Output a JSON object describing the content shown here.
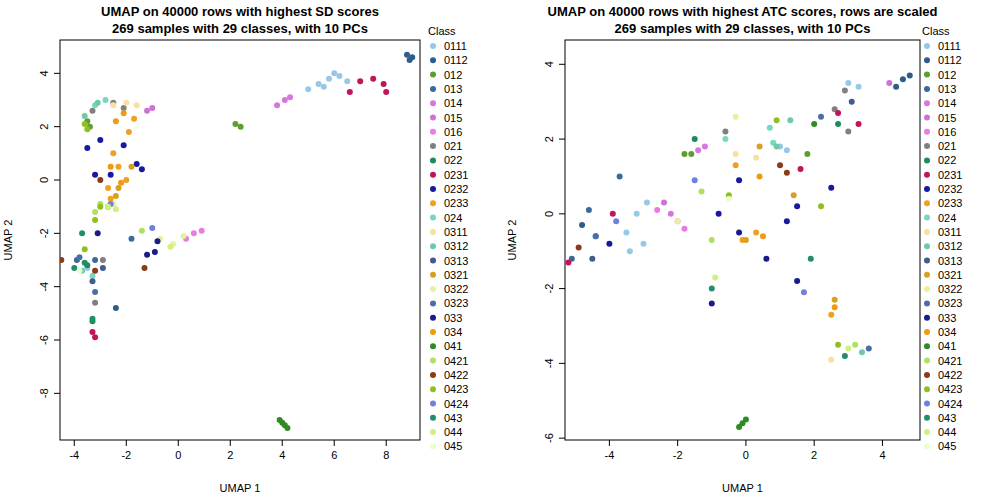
{
  "chart_data": [
    {
      "type": "scatter",
      "title": "UMAP on 40000 rows with highest SD scores",
      "subtitle": "269 samples with 29 classes, with 10 PCs",
      "x_label": "UMAP 1",
      "y_label": "UMAP 2",
      "legend_title": "Class",
      "legend": "right",
      "marker": "circle",
      "xlim": [
        -4.55,
        9.3
      ],
      "ylim": [
        -9.75,
        5.25
      ],
      "xticks": [
        -4,
        -2,
        0,
        2,
        4,
        6,
        8
      ],
      "yticks": [
        -8,
        -6,
        -4,
        -2,
        0,
        2,
        4
      ],
      "series": [
        {
          "name": "0111",
          "color": "#97c8e8",
          "x": [
            5.0,
            5.4,
            5.8,
            6.2,
            6.5,
            5.6,
            6.0,
            -3.5
          ],
          "values": [
            3.4,
            3.6,
            3.8,
            3.9,
            3.7,
            3.5,
            4.0,
            -3.3
          ]
        },
        {
          "name": "0112",
          "color": "#2d5d8a",
          "x": [
            8.8,
            9.0,
            8.9,
            -2.4
          ],
          "values": [
            4.7,
            4.6,
            4.5,
            -4.8
          ]
        },
        {
          "name": "012",
          "color": "#5ba02e",
          "x": [
            2.2,
            2.4,
            -3.5,
            -3.4
          ],
          "values": [
            2.1,
            2.0,
            2.2,
            2.0
          ]
        },
        {
          "name": "013",
          "color": "#3b6a9a",
          "x": [
            -3.9,
            -3.2,
            -1.8
          ],
          "values": [
            -3.0,
            -3.0,
            -2.2
          ]
        },
        {
          "name": "014",
          "color": "#d876e0",
          "x": [
            3.8,
            4.1,
            4.3
          ],
          "values": [
            2.8,
            3.0,
            3.1
          ]
        },
        {
          "name": "015",
          "color": "#d070d8",
          "x": [
            -1.0,
            -1.2
          ],
          "values": [
            2.7,
            2.6
          ]
        },
        {
          "name": "016",
          "color": "#ea7be2",
          "x": [
            0.6,
            0.9,
            0.3
          ],
          "values": [
            -2.0,
            -1.9,
            -2.2
          ]
        },
        {
          "name": "021",
          "color": "#808080",
          "x": [
            -2.9,
            -3.2,
            -2.5,
            -2.1,
            -3.3
          ],
          "values": [
            -3.0,
            -4.6,
            2.9,
            2.7,
            2.6
          ]
        },
        {
          "name": "022",
          "color": "#1e8c5a",
          "x": [
            -3.3,
            -3.5
          ],
          "values": [
            -5.3,
            -3.2
          ]
        },
        {
          "name": "0231",
          "color": "#c0155a",
          "x": [
            6.6,
            7.0,
            7.5,
            7.9,
            8.0,
            -3.3,
            -3.2
          ],
          "values": [
            3.3,
            3.7,
            3.8,
            3.6,
            3.3,
            -5.7,
            -5.9
          ]
        },
        {
          "name": "0232",
          "color": "#1818a0",
          "x": [
            -3.5,
            -3.0,
            -2.1,
            -1.6,
            -1.4,
            -2.6,
            -3.2
          ],
          "values": [
            1.2,
            1.5,
            1.3,
            0.6,
            0.4,
            0.2,
            0.2
          ]
        },
        {
          "name": "0233",
          "color": "#f0a020",
          "x": [
            -2.5,
            -2.3,
            -2.0,
            -1.9,
            -1.7,
            -2.7,
            -2.6
          ],
          "values": [
            1.0,
            0.5,
            0.0,
            1.8,
            2.3,
            -0.3,
            -0.7
          ]
        },
        {
          "name": "024",
          "color": "#76d8c0",
          "x": [
            -3.2,
            -2.8,
            -3.3
          ],
          "values": [
            2.8,
            3.0,
            -3.6
          ]
        },
        {
          "name": "0311",
          "color": "#f8e0a0",
          "x": [
            -2.5,
            -2.0,
            -1.6
          ],
          "values": [
            2.8,
            2.9,
            2.8
          ]
        },
        {
          "name": "0312",
          "color": "#70c8a8",
          "x": [
            -3.6,
            -3.1,
            -3.7
          ],
          "values": [
            2.4,
            2.9,
            -3.4
          ]
        },
        {
          "name": "0313",
          "color": "#3e5c8e",
          "x": [
            -2.9,
            -3.3
          ],
          "values": [
            -3.3,
            -3.8
          ]
        },
        {
          "name": "0321",
          "color": "#d8a020",
          "x": [
            -2.3,
            -2.4,
            -1.8
          ],
          "values": [
            -0.3,
            -0.6,
            0.5
          ]
        },
        {
          "name": "0322",
          "color": "#e8f0a0",
          "x": [
            -2.5,
            -0.7,
            -0.2,
            0.2
          ],
          "values": [
            -0.9,
            -2.2,
            -2.4,
            -2.1
          ]
        },
        {
          "name": "0323",
          "color": "#4a6fa8",
          "x": [
            -3.2,
            -3.8
          ],
          "values": [
            -4.2,
            -2.9
          ]
        },
        {
          "name": "033",
          "color": "#1a1a8c",
          "x": [
            -3.1,
            -0.9,
            -0.8,
            -1.2
          ],
          "values": [
            -2.0,
            -2.7,
            -2.3,
            -2.8
          ]
        },
        {
          "name": "034",
          "color": "#f09a10",
          "x": [
            -2.4,
            -2.1,
            -2.6,
            -2.2
          ],
          "values": [
            2.2,
            2.5,
            0.5,
            -0.1
          ]
        },
        {
          "name": "041",
          "color": "#2e8b22",
          "x": [
            4.0,
            4.1,
            4.2,
            3.9
          ],
          "values": [
            -9.1,
            -9.2,
            -9.3,
            -9.0
          ]
        },
        {
          "name": "0421",
          "color": "#b0e060",
          "x": [
            -3.2,
            -3.0,
            -1.4
          ],
          "values": [
            -1.2,
            -0.9,
            -1.9
          ]
        },
        {
          "name": "0422",
          "color": "#8b3a1a",
          "x": [
            -4.5,
            -3.2,
            -1.3,
            -3.0
          ],
          "values": [
            -3.0,
            -3.4,
            -3.3,
            0.0
          ]
        },
        {
          "name": "0423",
          "color": "#90c020",
          "x": [
            -3.0,
            -3.2,
            -3.6,
            -3.5,
            -3.6
          ],
          "values": [
            -1.0,
            -1.5,
            -2.6,
            1.9,
            2.1
          ]
        },
        {
          "name": "0424",
          "color": "#7080e0",
          "x": [
            -2.6,
            -2.7,
            -1.0
          ],
          "values": [
            -0.9,
            -1.0,
            -1.8
          ]
        },
        {
          "name": "043",
          "color": "#1e8e6e",
          "x": [
            -3.3,
            -3.6,
            -3.7,
            -4.0
          ],
          "values": [
            -5.2,
            -3.1,
            -2.0,
            -3.3
          ]
        },
        {
          "name": "044",
          "color": "#d0f080",
          "x": [
            -2.7,
            -2.4,
            -0.3
          ],
          "values": [
            -1.0,
            -1.1,
            -2.5
          ]
        },
        {
          "name": "045",
          "color": "#e8ffd0",
          "x": [
            -3.8
          ],
          "values": [
            -3.4
          ]
        }
      ]
    },
    {
      "type": "scatter",
      "title": "UMAP on 40000 rows with highest ATC scores, rows are scaled",
      "subtitle": "269 samples with 29 classes, with 10 PCs",
      "x_label": "UMAP 1",
      "y_label": "UMAP 2",
      "legend_title": "Class",
      "legend": "right",
      "marker": "circle",
      "xlim": [
        -5.3,
        5.1
      ],
      "ylim": [
        -6.05,
        4.65
      ],
      "xticks": [
        -4,
        -2,
        0,
        2,
        4
      ],
      "yticks": [
        -6,
        -4,
        -2,
        0,
        2,
        4
      ],
      "series": [
        {
          "name": "0111",
          "color": "#97c8e8",
          "x": [
            -3.5,
            -3.2,
            -2.9,
            -3.4,
            -3.0,
            1.0,
            1.2,
            3.0,
            3.3
          ],
          "values": [
            -0.5,
            0.0,
            0.3,
            -1.0,
            -0.8,
            1.8,
            1.7,
            3.5,
            3.4
          ]
        },
        {
          "name": "0112",
          "color": "#2d5d8a",
          "x": [
            4.6,
            4.8,
            4.4,
            -4.8
          ],
          "values": [
            3.6,
            3.7,
            3.4,
            -0.3
          ]
        },
        {
          "name": "012",
          "color": "#5ba02e",
          "x": [
            -1.8,
            -1.6,
            1.8
          ],
          "values": [
            1.6,
            1.6,
            1.6
          ]
        },
        {
          "name": "013",
          "color": "#3b6a9a",
          "x": [
            -4.6,
            -4.4,
            -5.1,
            -3.7
          ],
          "values": [
            0.1,
            -0.6,
            -1.2,
            1.0
          ]
        },
        {
          "name": "014",
          "color": "#d876e0",
          "x": [
            -1.4,
            -1.2,
            -2.2
          ],
          "values": [
            1.7,
            1.8,
            0.0
          ]
        },
        {
          "name": "015",
          "color": "#d070d8",
          "x": [
            -2.4,
            4.2
          ],
          "values": [
            0.3,
            3.5
          ]
        },
        {
          "name": "016",
          "color": "#ea7be2",
          "x": [
            -2.0,
            -1.8,
            -2.6
          ],
          "values": [
            -0.2,
            -0.4,
            0.1
          ]
        },
        {
          "name": "021",
          "color": "#808080",
          "x": [
            2.9,
            2.6,
            -0.6,
            3.0
          ],
          "values": [
            3.3,
            2.8,
            2.2,
            2.2
          ]
        },
        {
          "name": "022",
          "color": "#1e8c5a",
          "x": [
            2.7,
            -1.5
          ],
          "values": [
            2.4,
            2.0
          ]
        },
        {
          "name": "0231",
          "color": "#c0155a",
          "x": [
            -5.2,
            -3.9,
            3.3,
            1.6,
            2.7
          ],
          "values": [
            -1.3,
            0.0,
            2.4,
            1.2,
            2.7
          ]
        },
        {
          "name": "0232",
          "color": "#1818a0",
          "x": [
            -4.0,
            -0.2,
            1.2,
            1.5,
            2.5,
            -0.8
          ],
          "values": [
            -0.8,
            0.9,
            -0.2,
            0.2,
            0.7,
            0.0
          ]
        },
        {
          "name": "0233",
          "color": "#f0a020",
          "x": [
            -0.1,
            0.3,
            2.5,
            -0.3
          ],
          "values": [
            -0.7,
            -0.5,
            -2.7,
            1.3
          ]
        },
        {
          "name": "024",
          "color": "#76d8c0",
          "x": [
            0.8,
            0.7,
            -0.6
          ],
          "values": [
            1.9,
            2.3,
            2.0
          ]
        },
        {
          "name": "0311",
          "color": "#f8e0a0",
          "x": [
            -0.3,
            2.5,
            0.3
          ],
          "values": [
            1.6,
            -3.9,
            1.5
          ]
        },
        {
          "name": "0312",
          "color": "#70c8a8",
          "x": [
            0.9,
            1.3,
            3.4
          ],
          "values": [
            1.8,
            2.5,
            -3.7
          ]
        },
        {
          "name": "0313",
          "color": "#3e5c8e",
          "x": [
            3.1,
            -4.5
          ],
          "values": [
            3.0,
            -1.2
          ]
        },
        {
          "name": "0321",
          "color": "#d8a020",
          "x": [
            0.0,
            2.6,
            1.4,
            0.4
          ],
          "values": [
            -0.7,
            -2.3,
            0.5,
            1.8
          ]
        },
        {
          "name": "0322",
          "color": "#e8f0a0",
          "x": [
            -0.3,
            -2.0
          ],
          "values": [
            2.6,
            -0.2
          ]
        },
        {
          "name": "0323",
          "color": "#4a6fa8",
          "x": [
            -4.4,
            2.2,
            3.6
          ],
          "values": [
            -0.6,
            2.6,
            -3.6
          ]
        },
        {
          "name": "033",
          "color": "#1a1a8c",
          "x": [
            -1.0,
            0.6,
            1.5,
            -0.2
          ],
          "values": [
            -2.4,
            -1.2,
            -1.8,
            -0.5
          ]
        },
        {
          "name": "034",
          "color": "#f09a10",
          "x": [
            0.5,
            2.6,
            0.4
          ],
          "values": [
            -0.6,
            -2.5,
            1.0
          ]
        },
        {
          "name": "041",
          "color": "#2e8b22",
          "x": [
            -0.1,
            -0.2,
            0.0,
            2.0
          ],
          "values": [
            -5.6,
            -5.7,
            -5.5,
            2.4
          ]
        },
        {
          "name": "0421",
          "color": "#b0e060",
          "x": [
            -1.0,
            -1.3,
            3.2
          ],
          "values": [
            -0.7,
            0.6,
            -3.5
          ]
        },
        {
          "name": "0422",
          "color": "#8b3a1a",
          "x": [
            -4.9,
            1.0,
            1.2
          ],
          "values": [
            -0.9,
            1.3,
            1.1
          ]
        },
        {
          "name": "0423",
          "color": "#90c020",
          "x": [
            -0.5,
            0.9,
            2.7,
            2.2
          ],
          "values": [
            0.5,
            2.5,
            -3.5,
            0.2
          ]
        },
        {
          "name": "0424",
          "color": "#7080e0",
          "x": [
            -3.8,
            -1.5,
            1.7
          ],
          "values": [
            -0.2,
            0.9,
            -2.1
          ]
        },
        {
          "name": "043",
          "color": "#1e8e6e",
          "x": [
            -1.0,
            2.9,
            1.9
          ],
          "values": [
            -2.0,
            -3.8,
            -1.2
          ]
        },
        {
          "name": "044",
          "color": "#d0f080",
          "x": [
            -0.9,
            3.0
          ],
          "values": [
            -1.7,
            -3.6
          ]
        },
        {
          "name": "045",
          "color": "#e8ffd0",
          "x": [
            -0.5
          ],
          "values": [
            0.4
          ]
        }
      ]
    }
  ]
}
